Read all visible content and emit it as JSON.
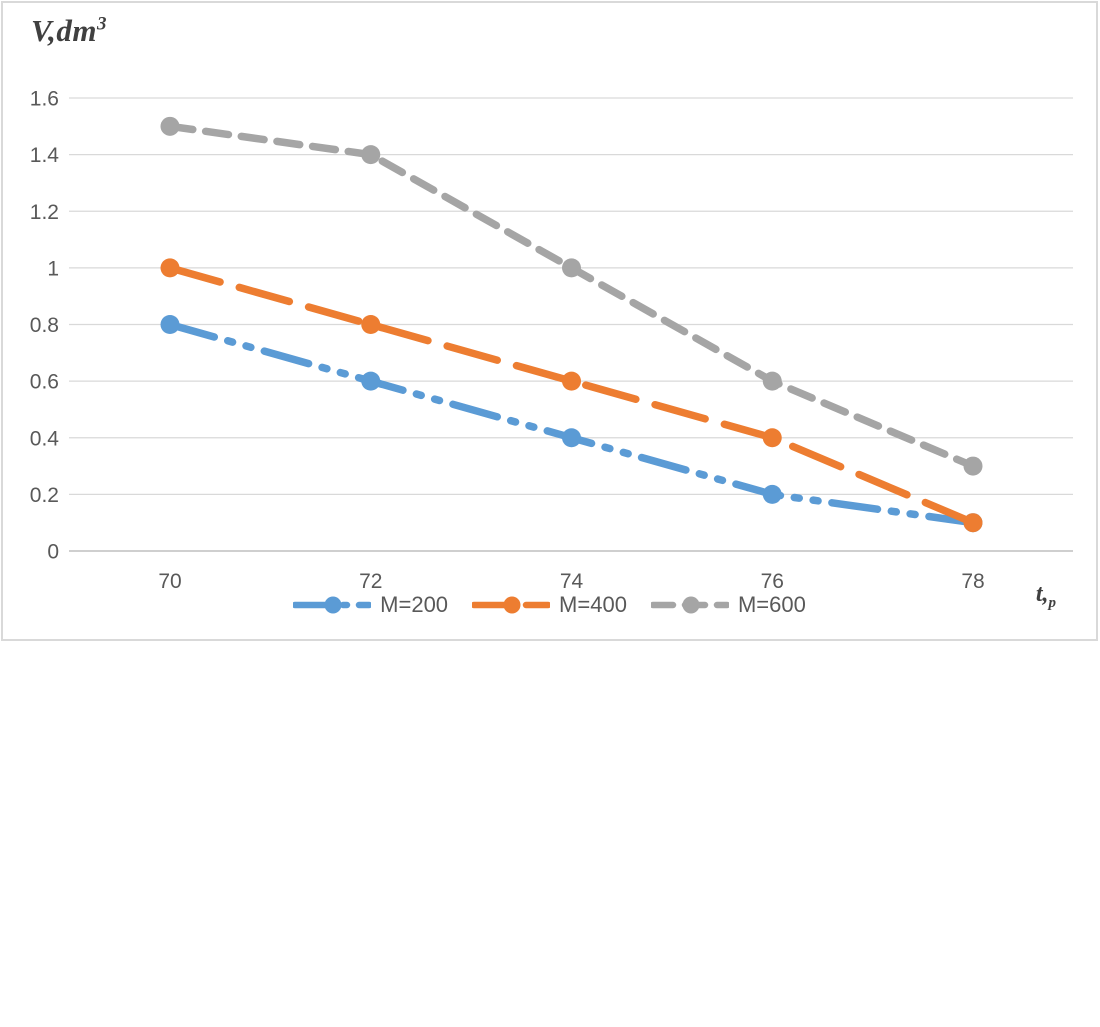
{
  "chart": {
    "title_base": "V,dm",
    "title_sup": "3",
    "xlabel_base": "t,",
    "xlabel_sub": "p"
  },
  "chart_data": {
    "type": "line",
    "title": "V,dm³",
    "xlabel": "t,p",
    "ylabel": "V,dm³",
    "x": [
      70,
      72,
      74,
      76,
      78
    ],
    "xticks": [
      "70",
      "72",
      "74",
      "76",
      "78"
    ],
    "yticks": [
      "0",
      "0.2",
      "0.4",
      "0.6",
      "0.8",
      "1",
      "1.2",
      "1.4",
      "1.6"
    ],
    "ylim": [
      0,
      1.6
    ],
    "ytick_step": 0.2,
    "grid": true,
    "legend_position": "bottom",
    "series": [
      {
        "name": "M=200",
        "color": "#5B9BD5",
        "dash_style": "dash-dot-dot",
        "values": [
          0.8,
          0.6,
          0.4,
          0.2,
          0.1
        ]
      },
      {
        "name": "M=400",
        "color": "#ED7D31",
        "dash_style": "long-dash",
        "values": [
          1.0,
          0.8,
          0.6,
          0.4,
          0.1
        ]
      },
      {
        "name": "M=600",
        "color": "#A5A5A5",
        "dash_style": "dash",
        "values": [
          1.5,
          1.4,
          1.0,
          0.6,
          0.3
        ]
      }
    ],
    "colors": {
      "gridline": "#D9D9D9",
      "axis_line": "#BFBFBF",
      "tick_text": "#595959",
      "frame_border": "#D9D9D9"
    }
  }
}
